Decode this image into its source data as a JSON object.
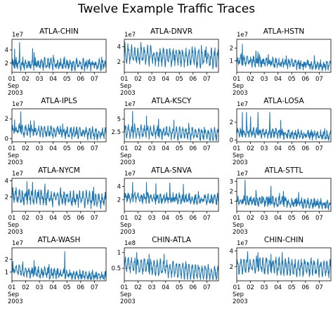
{
  "figure": {
    "title": "Twelve Example Traffic Traces",
    "xtick_labels": [
      "01\nSep\n2003",
      "02",
      "03",
      "04",
      "05",
      "06",
      "07"
    ],
    "line_color": "#1f77b4"
  },
  "chart_data": [
    {
      "type": "line",
      "title": "ATLA-CHIN",
      "scale_label": "1e7",
      "yticks": [
        2,
        4
      ],
      "ylim": [
        0.6,
        5.6
      ],
      "trace": {
        "base": 1.9,
        "amp": 0.5,
        "noise": 0.6,
        "spikes": [
          [
            1.55,
            5.1
          ],
          [
            2.5,
            4.2
          ],
          [
            2.6,
            3.6
          ],
          [
            4.0,
            3.2
          ],
          [
            1.2,
            4.1
          ]
        ],
        "trend": -0.25,
        "seed": 11
      }
    },
    {
      "type": "line",
      "title": "ATLA-DNVR",
      "scale_label": "1e7",
      "yticks": [
        2,
        4
      ],
      "ylim": [
        0.6,
        5.0
      ],
      "trace": {
        "base": 3.0,
        "amp": 0.9,
        "noise": 0.55,
        "spikes": [
          [
            1.05,
            4.6
          ],
          [
            1.25,
            4.4
          ],
          [
            6.95,
            4.0
          ]
        ],
        "trend": -0.6,
        "seed": 23
      }
    },
    {
      "type": "line",
      "title": "ATLA-HSTN",
      "scale_label": "1e7",
      "yticks": [
        1,
        2
      ],
      "ylim": [
        0.1,
        2.7
      ],
      "trace": {
        "base": 1.0,
        "amp": 0.2,
        "noise": 0.28,
        "spikes": [
          [
            1.4,
            2.3
          ],
          [
            2.4,
            1.8
          ],
          [
            2.55,
            1.7
          ],
          [
            3.3,
            1.5
          ],
          [
            4.6,
            1.4
          ]
        ],
        "trend": -0.4,
        "seed": 37
      }
    },
    {
      "type": "line",
      "title": "ATLA-IPLS",
      "scale_label": "1e7",
      "yticks": [
        0,
        2
      ],
      "ylim": [
        -0.3,
        3.0
      ],
      "trace": {
        "base": 0.9,
        "amp": 0.35,
        "noise": 0.35,
        "spikes": [
          [
            1.65,
            2.7
          ],
          [
            1.2,
            1.9
          ],
          [
            2.35,
            1.8
          ],
          [
            2.6,
            1.8
          ],
          [
            4.7,
            1.5
          ]
        ],
        "trend": -0.4,
        "seed": 41
      }
    },
    {
      "type": "line",
      "title": "ATLA-KSCY",
      "scale_label": "1e7",
      "yticks": [
        2.5,
        5.0
      ],
      "ylim": [
        0.6,
        7.0
      ],
      "trace": {
        "base": 2.7,
        "amp": 0.9,
        "noise": 0.6,
        "spikes": [
          [
            1.6,
            6.5
          ],
          [
            2.6,
            5.6
          ],
          [
            3.5,
            5.0
          ],
          [
            4.6,
            4.8
          ]
        ],
        "trend": -0.7,
        "seed": 53
      }
    },
    {
      "type": "line",
      "title": "ATLA-LOSA",
      "scale_label": "1e7",
      "yticks": [
        0,
        2
      ],
      "ylim": [
        -0.2,
        3.5
      ],
      "trace": {
        "base": 0.9,
        "amp": 0.3,
        "noise": 0.35,
        "spikes": [
          [
            1.4,
            3.1
          ],
          [
            1.7,
            3.1
          ],
          [
            2.0,
            2.6
          ],
          [
            2.55,
            3.1
          ],
          [
            3.4,
            3.1
          ],
          [
            4.2,
            2.2
          ]
        ],
        "trend": -0.4,
        "seed": 67
      }
    },
    {
      "type": "line",
      "title": "ATLA-NYCM",
      "scale_label": "1e7",
      "yticks": [
        2,
        4
      ],
      "ylim": [
        0.2,
        4.3
      ],
      "trace": {
        "base": 2.1,
        "amp": 0.6,
        "noise": 0.55,
        "spikes": [
          [
            2.1,
            3.9
          ],
          [
            2.5,
            3.8
          ],
          [
            3.4,
            3.6
          ],
          [
            6.95,
            3.2
          ]
        ],
        "trend": -0.5,
        "seed": 71
      }
    },
    {
      "type": "line",
      "title": "ATLA-SNVA",
      "scale_label": "1e7",
      "yticks": [
        2,
        4
      ],
      "ylim": [
        0.3,
        5.2
      ],
      "trace": {
        "base": 2.4,
        "amp": 0.4,
        "noise": 0.55,
        "spikes": [
          [
            1.6,
            4.6
          ],
          [
            2.6,
            4.6
          ],
          [
            3.3,
            4.4
          ],
          [
            4.3,
            4.5
          ],
          [
            5.3,
            4.3
          ]
        ],
        "trend": -0.4,
        "seed": 83
      }
    },
    {
      "type": "line",
      "title": "ATLA-STTL",
      "scale_label": "1e7",
      "yticks": [
        1,
        2,
        3
      ],
      "ylim": [
        0.0,
        3.3
      ],
      "trace": {
        "base": 1.1,
        "amp": 0.25,
        "noise": 0.35,
        "spikes": [
          [
            1.6,
            3.1
          ],
          [
            2.4,
            2.1
          ],
          [
            3.5,
            2.5
          ],
          [
            4.4,
            2.0
          ],
          [
            5.5,
            1.9
          ]
        ],
        "trend": -0.4,
        "seed": 97
      }
    },
    {
      "type": "line",
      "title": "ATLA-WASH",
      "scale_label": "1e7",
      "yticks": [
        1,
        2
      ],
      "ylim": [
        0.3,
        2.9
      ],
      "trace": {
        "base": 1.1,
        "amp": 0.25,
        "noise": 0.28,
        "spikes": [
          [
            1.8,
            1.8
          ],
          [
            2.6,
            1.9
          ],
          [
            4.85,
            2.6
          ],
          [
            3.7,
            1.6
          ]
        ],
        "trend": -0.5,
        "seed": 103
      }
    },
    {
      "type": "line",
      "title": "CHIN-ATLA",
      "scale_label": "1e8",
      "yticks": [
        0.5,
        1.0
      ],
      "ylim": [
        0.1,
        1.15
      ],
      "trace": {
        "base": 0.62,
        "amp": 0.2,
        "noise": 0.1,
        "spikes": [
          [
            1.9,
            1.0
          ],
          [
            2.8,
            0.95
          ],
          [
            3.9,
            0.95
          ],
          [
            6.95,
            0.48
          ]
        ],
        "trend": -0.3,
        "seed": 109
      }
    },
    {
      "type": "line",
      "title": "CHIN-CHIN",
      "scale_label": "1e7",
      "yticks": [
        2,
        4
      ],
      "ylim": [
        0.2,
        4.4
      ],
      "trace": {
        "base": 2.2,
        "amp": 0.8,
        "noise": 0.5,
        "spikes": [
          [
            1.8,
            3.9
          ],
          [
            2.55,
            3.8
          ],
          [
            3.5,
            3.6
          ],
          [
            6.9,
            3.0
          ]
        ],
        "trend": -0.4,
        "seed": 127
      }
    }
  ]
}
